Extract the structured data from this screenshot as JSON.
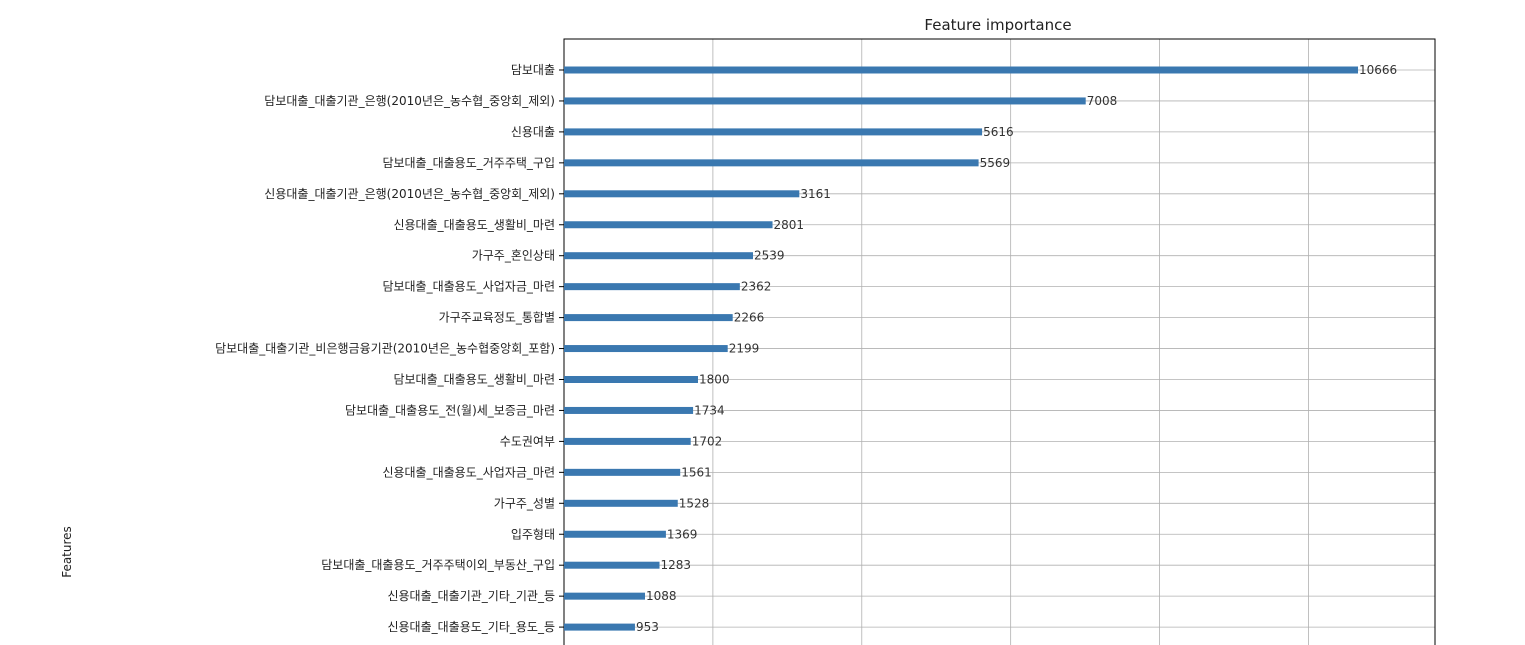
{
  "chart_data": {
    "type": "bar",
    "orientation": "horizontal",
    "title": "Feature importance",
    "xlabel": "",
    "ylabel": "Features",
    "xlim": [
      0,
      11700
    ],
    "grid": true,
    "bar_color": "#3a78b0",
    "categories": [
      "담보대출",
      "담보대출_대출기관_은행(2010년은_농수협_중앙회_제외)",
      "신용대출",
      "담보대출_대출용도_거주주택_구입",
      "신용대출_대출기관_은행(2010년은_농수협_중앙회_제외)",
      "신용대출_대출용도_생활비_마련",
      "가구주_혼인상태",
      "담보대출_대출용도_사업자금_마련",
      "가구주교육정도_통합별",
      "담보대출_대출기관_비은행금융기관(2010년은_농수협중앙회_포함)",
      "담보대출_대출용도_생활비_마련",
      "담보대출_대출용도_전(월)세_보증금_마련",
      "수도권여부",
      "신용대출_대출용도_사업자금_마련",
      "가구주_성별",
      "입주형태",
      "담보대출_대출용도_거주주택이외_부동산_구입",
      "신용대출_대출기관_기타_기관_등",
      "신용대출_대출용도_기타_용도_등"
    ],
    "values": [
      10666,
      7008,
      5616,
      5569,
      3161,
      2801,
      2539,
      2362,
      2266,
      2199,
      1800,
      1734,
      1702,
      1561,
      1528,
      1369,
      1283,
      1088,
      953
    ]
  }
}
